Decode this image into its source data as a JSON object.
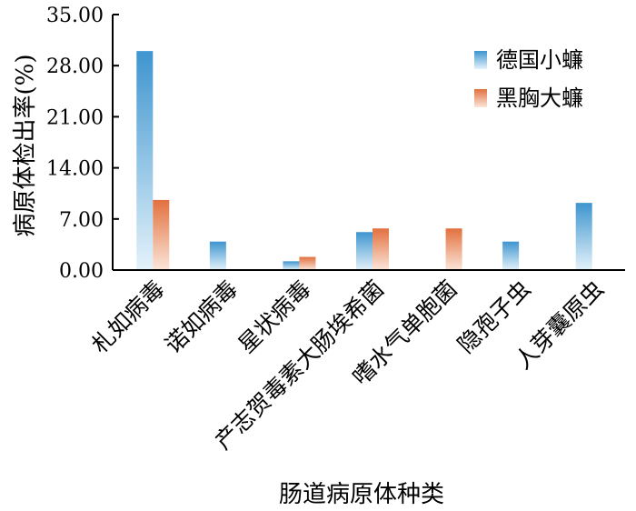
{
  "chart_data": {
    "type": "bar",
    "xlabel": "肠道病原体种类",
    "ylabel": "病原体检出率(%)",
    "ylim": [
      0,
      35
    ],
    "yticks": [
      "0.00",
      "7.00",
      "14.00",
      "21.00",
      "28.00",
      "35.00"
    ],
    "categories": [
      "札如病毒",
      "诺如病毒",
      "星状病毒",
      "产志贺毒素大肠埃希菌",
      "嗜水气单胞菌",
      "隐孢子虫",
      "人芽囊原虫"
    ],
    "series": [
      {
        "name": "德国小蠊",
        "color": "#3e95cf",
        "values": [
          30.0,
          3.9,
          1.2,
          5.2,
          0,
          3.9,
          9.2
        ]
      },
      {
        "name": "黑胸大蠊",
        "color": "#e2703e",
        "values": [
          9.6,
          0,
          1.8,
          5.7,
          5.7,
          0,
          0
        ]
      }
    ],
    "legend_position": "top-right",
    "grid": false
  }
}
